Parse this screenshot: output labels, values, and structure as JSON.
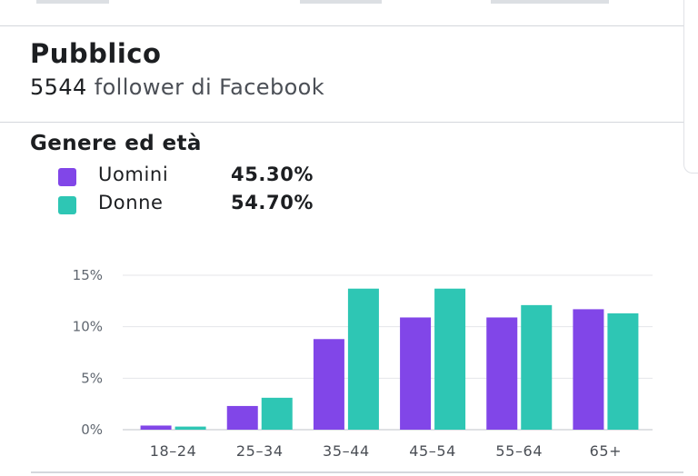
{
  "audience": {
    "title": "Pubblico",
    "followers_count": "5544",
    "followers_label": "follower di Facebook"
  },
  "gender_age": {
    "title": "Genere ed età",
    "legend": [
      {
        "label": "Uomini",
        "percent": "45.30%",
        "color": "#8146e8"
      },
      {
        "label": "Donne",
        "percent": "54.70%",
        "color": "#2ec6b4"
      }
    ]
  },
  "chart_data": {
    "type": "bar",
    "categories": [
      "18–24",
      "25–34",
      "35–44",
      "45–54",
      "55–64",
      "65+"
    ],
    "series": [
      {
        "name": "Uomini",
        "color": "#8146e8",
        "values": [
          0.4,
          2.3,
          8.8,
          10.9,
          10.9,
          11.7
        ]
      },
      {
        "name": "Donne",
        "color": "#2ec6b4",
        "values": [
          0.3,
          3.1,
          13.7,
          13.7,
          12.1,
          11.3
        ]
      }
    ],
    "yticks": [
      "0%",
      "5%",
      "10%",
      "15%"
    ],
    "ytick_values": [
      0,
      5,
      10,
      15
    ],
    "ylim": [
      0,
      15
    ],
    "grid": true
  }
}
